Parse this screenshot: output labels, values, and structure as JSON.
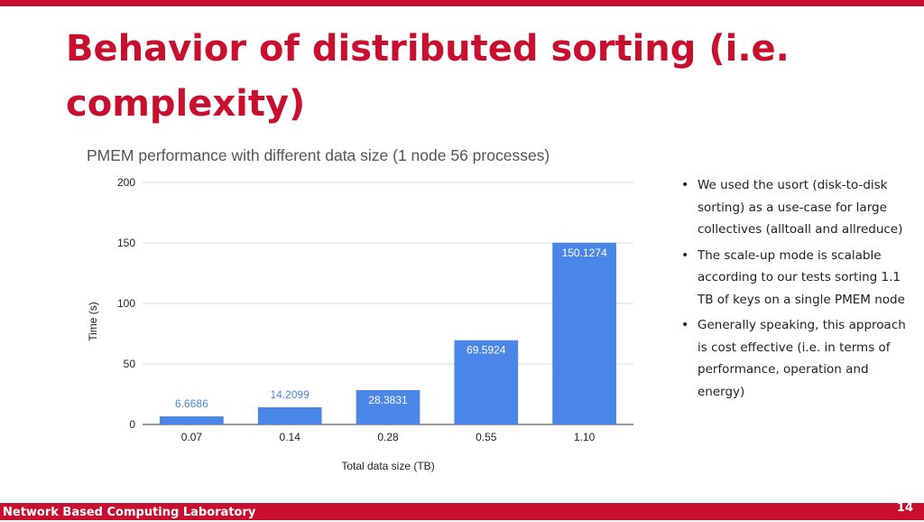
{
  "slide": {
    "title": "Behavior of distributed sorting (i.e. complexity)",
    "bullets": [
      "We used the usort (disk-to-disk sorting) as a use-case for large collectives (alltoall and allreduce)",
      "The scale-up mode is scalable according to our tests sorting 1.1 TB of keys on a single PMEM node",
      "Generally speaking, this approach is cost effective (i.e. in terms of performance, operation and energy)"
    ],
    "footer": "Network Based Computing Laboratory",
    "page_number": "14"
  },
  "colors": {
    "accent": "#c8102e",
    "bar": "#4a86e8",
    "grid": "#d9d9d9",
    "label_inside": "#ffffff",
    "label_outside": "#4a86e8"
  },
  "chart_data": {
    "type": "bar",
    "title": "PMEM performance with different data size (1 node 56 processes)",
    "xlabel": "Total data size (TB)",
    "ylabel": "Time (s)",
    "categories": [
      "0.07",
      "0.14",
      "0.28",
      "0.55",
      "1.10"
    ],
    "values": [
      6.6686,
      14.2099,
      28.3831,
      69.5924,
      150.1274
    ],
    "data_labels": [
      "6.6686",
      "14.2099",
      "28.3831",
      "69.5924",
      "150.1274"
    ],
    "ylim": [
      0,
      200
    ],
    "yticks": [
      "0",
      "50",
      "100",
      "150",
      "200"
    ],
    "grid": true,
    "legend": "none"
  }
}
